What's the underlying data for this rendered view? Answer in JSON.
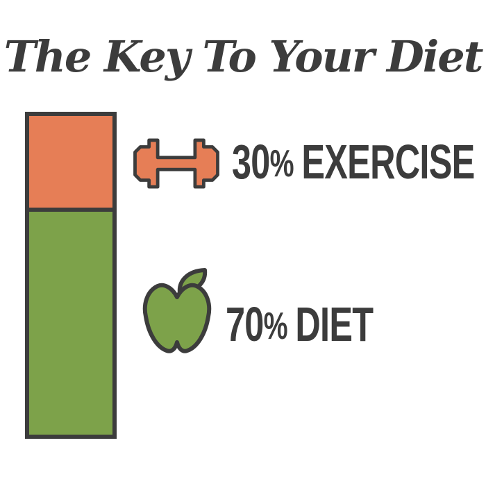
{
  "title": "The Key To Your Diet",
  "colors": {
    "exercise": "#e67e56",
    "diet": "#7da24a",
    "outline": "#3c3c3c",
    "background": "#ffffff"
  },
  "legend": [
    {
      "value": "30",
      "percent_sign": "%",
      "label": "EXERCISE",
      "icon": "dumbbell-icon"
    },
    {
      "value": "70",
      "percent_sign": "%",
      "label": "DIET",
      "icon": "apple-icon"
    }
  ],
  "chart_data": {
    "type": "bar",
    "title": "The Key To Your Diet",
    "categories": [
      "Exercise",
      "Diet"
    ],
    "values": [
      30,
      70
    ],
    "unit": "%",
    "stacked": true,
    "orientation": "vertical",
    "colors": [
      "#e67e56",
      "#7da24a"
    ],
    "annotations": [
      "30% EXERCISE",
      "70% DIET"
    ],
    "legend_position": "right",
    "axes": "none",
    "grid": false
  }
}
